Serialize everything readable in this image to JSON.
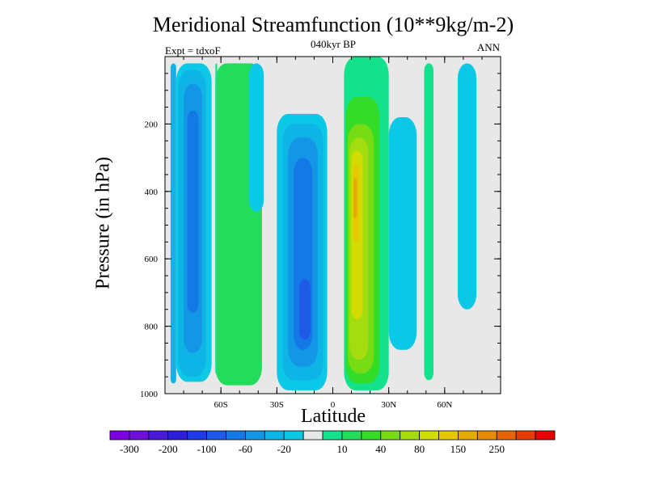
{
  "chart_data": {
    "type": "heatmap",
    "title": "Meridional Streamfunction (10**9kg/m-2)",
    "subtitle": "040kyr BP",
    "left_label": "Expt = tdxoF",
    "right_label": "ANN",
    "xlabel": "Latitude",
    "ylabel": "Pressure (in hPa)",
    "xlim": [
      -90,
      90
    ],
    "ylim": [
      1000,
      0
    ],
    "x_ticks": [
      {
        "value": -60,
        "label": "60S"
      },
      {
        "value": -30,
        "label": "30S"
      },
      {
        "value": 0,
        "label": "0"
      },
      {
        "value": 30,
        "label": "30N"
      },
      {
        "value": 60,
        "label": "60N"
      }
    ],
    "y_ticks": [
      {
        "value": 200,
        "label": "200"
      },
      {
        "value": 400,
        "label": "400"
      },
      {
        "value": 600,
        "label": "600"
      },
      {
        "value": 800,
        "label": "800"
      },
      {
        "value": 1000,
        "label": "1000"
      }
    ],
    "colorbar": {
      "colors": [
        "#7d00e0",
        "#6f0fdc",
        "#4b19d8",
        "#2d1ed8",
        "#1e3ce6",
        "#1e5ae6",
        "#1478e6",
        "#1496e6",
        "#0fb4e6",
        "#0ac8e6",
        "#e8e8e8",
        "#14e18c",
        "#23dc5a",
        "#32dc28",
        "#78dc14",
        "#a5dc0f",
        "#d2dc00",
        "#e6c800",
        "#e6aa00",
        "#e68c00",
        "#e66400",
        "#e63c00",
        "#e60000"
      ],
      "labels": [
        "-300",
        "-200",
        "-100",
        "-60",
        "-20",
        "10",
        "40",
        "80",
        "150",
        "250"
      ]
    },
    "cells": [
      {
        "lat": [
          -87,
          -84
        ],
        "p": [
          20,
          970
        ],
        "color": "#0fb4e6"
      },
      {
        "lat": [
          -84,
          -65
        ],
        "p": [
          20,
          965
        ],
        "color": "#0ac8e6"
      },
      {
        "lat": [
          -83,
          -68
        ],
        "p": [
          40,
          950
        ],
        "color": "#0fb4e6"
      },
      {
        "lat": [
          -80,
          -70
        ],
        "p": [
          80,
          880
        ],
        "color": "#1496e6"
      },
      {
        "lat": [
          -78,
          -72
        ],
        "p": [
          160,
          760
        ],
        "color": "#1478e6"
      },
      {
        "lat": [
          -63,
          -38
        ],
        "p": [
          20,
          975
        ],
        "color": "#23dc5a"
      },
      {
        "lat": [
          -63,
          -62
        ],
        "p": [
          20,
          940
        ],
        "color": "#14e18c"
      },
      {
        "lat": [
          -45,
          -37
        ],
        "p": [
          20,
          460
        ],
        "color": "#0ac8e6"
      },
      {
        "lat": [
          -30,
          -3
        ],
        "p": [
          170,
          990
        ],
        "color": "#0ac8e6"
      },
      {
        "lat": [
          -27,
          -5
        ],
        "p": [
          200,
          960
        ],
        "color": "#0fb4e6"
      },
      {
        "lat": [
          -24,
          -8
        ],
        "p": [
          240,
          920
        ],
        "color": "#1496e6"
      },
      {
        "lat": [
          -21,
          -11
        ],
        "p": [
          300,
          870
        ],
        "color": "#1478e6"
      },
      {
        "lat": [
          -18,
          -12
        ],
        "p": [
          660,
          840
        ],
        "color": "#1e5ae6"
      },
      {
        "lat": [
          6,
          30
        ],
        "p": [
          0,
          990
        ],
        "color": "#14e18c"
      },
      {
        "lat": [
          7,
          25
        ],
        "p": [
          120,
          970
        ],
        "color": "#32dc28"
      },
      {
        "lat": [
          8,
          22
        ],
        "p": [
          200,
          940
        ],
        "color": "#78dc14"
      },
      {
        "lat": [
          9,
          19
        ],
        "p": [
          240,
          900
        ],
        "color": "#a5dc0f"
      },
      {
        "lat": [
          10,
          16
        ],
        "p": [
          280,
          780
        ],
        "color": "#d2dc00"
      },
      {
        "lat": [
          11,
          14
        ],
        "p": [
          320,
          550
        ],
        "color": "#e6c800"
      },
      {
        "lat": [
          11,
          13
        ],
        "p": [
          360,
          480
        ],
        "color": "#e6aa00"
      },
      {
        "lat": [
          30,
          45
        ],
        "p": [
          180,
          870
        ],
        "color": "#0ac8e6"
      },
      {
        "lat": [
          49,
          54
        ],
        "p": [
          20,
          960
        ],
        "color": "#14e18c"
      },
      {
        "lat": [
          67,
          77
        ],
        "p": [
          20,
          750
        ],
        "color": "#0ac8e6"
      }
    ]
  }
}
